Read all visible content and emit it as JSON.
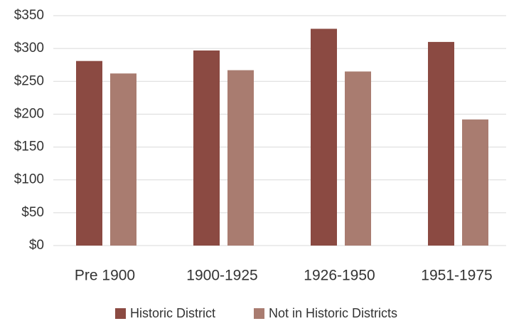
{
  "chart_data": {
    "type": "bar",
    "categories": [
      "Pre 1900",
      "1900-1925",
      "1926-1950",
      "1951-1975"
    ],
    "series": [
      {
        "name": "Historic District",
        "color": "#8b4a42",
        "values": [
          281,
          297,
          330,
          310
        ]
      },
      {
        "name": "Not in Historic Districts",
        "color": "#a97c70",
        "values": [
          262,
          267,
          265,
          192
        ]
      }
    ],
    "ylim": [
      0,
      350
    ],
    "yticks": [
      {
        "value": 0,
        "label": "$0"
      },
      {
        "value": 50,
        "label": "$50"
      },
      {
        "value": 100,
        "label": "$100"
      },
      {
        "value": 150,
        "label": "$150"
      },
      {
        "value": 200,
        "label": "$200"
      },
      {
        "value": 250,
        "label": "$250"
      },
      {
        "value": 300,
        "label": "$300"
      },
      {
        "value": 350,
        "label": "$350"
      }
    ],
    "grid": true,
    "legend": "bottom"
  }
}
